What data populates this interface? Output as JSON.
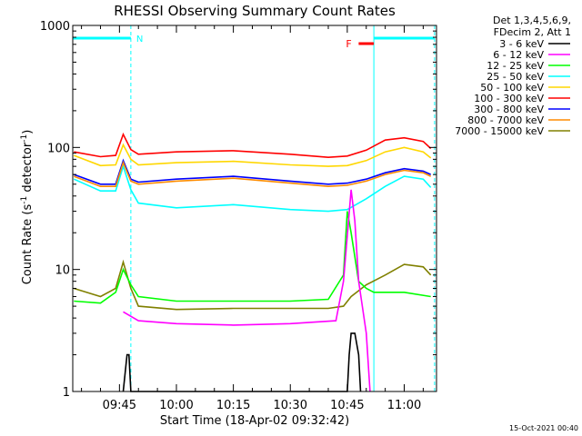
{
  "chart_data": {
    "type": "line",
    "title": "RHESSI Observing Summary Count Rates",
    "xlabel": "Start Time (18-Apr-02 09:32:42)",
    "ylabel": "Count Rate (s",
    "ylabel_exp1": "-1",
    "ylabel_mid": " detector",
    "ylabel_exp2": "-1",
    "ylabel_end": ")",
    "y_scale": "log",
    "ylim": [
      1,
      1000
    ],
    "xlim": [
      "09:32:42",
      "11:08:30"
    ],
    "x_ticks": [
      "09:45",
      "10:00",
      "10:15",
      "10:30",
      "10:45",
      "11:00"
    ],
    "y_ticks": [
      "1",
      "10",
      "100",
      "1000"
    ],
    "footer_date": "15-Oct-2021 00:40",
    "legend_header": [
      "Det 1,3,4,5,6,9,",
      "FDecim 2, Att 1"
    ],
    "legend_position": "right",
    "annotations": {
      "night_label": "N",
      "flare_label": "F",
      "night_intervals": [
        [
          "09:32:42",
          "09:48:00"
        ],
        [
          "10:52:00",
          "11:08:00"
        ]
      ],
      "flare_interval": [
        "10:48:00",
        "10:52:00"
      ]
    },
    "series": [
      {
        "name": "3 - 6 keV",
        "color": "#000000",
        "x": [
          "09:46",
          "09:47",
          "09:47.5",
          "09:48",
          "10:45",
          "10:45.5",
          "10:46",
          "10:47",
          "10:48",
          "10:48.5"
        ],
        "values": [
          1,
          2,
          2,
          1,
          1,
          2,
          3,
          3,
          2,
          1
        ]
      },
      {
        "name": "6 - 12 keV",
        "color": "#ff00ff",
        "x": [
          "09:46",
          "09:50",
          "10:00",
          "10:15",
          "10:30",
          "10:42",
          "10:44",
          "10:46",
          "10:47",
          "10:48",
          "10:50",
          "10:51"
        ],
        "values": [
          4.5,
          3.8,
          3.6,
          3.5,
          3.6,
          3.8,
          8,
          45,
          25,
          8,
          3,
          1
        ]
      },
      {
        "name": "12 - 25 keV",
        "color": "#00ff00",
        "x": [
          "09:33",
          "09:40",
          "09:44",
          "09:46",
          "09:48",
          "09:50",
          "10:00",
          "10:15",
          "10:30",
          "10:40",
          "10:44",
          "10:45",
          "10:46",
          "10:48",
          "10:50",
          "10:52",
          "11:00",
          "11:07"
        ],
        "values": [
          5.5,
          5.3,
          6.5,
          10,
          7.5,
          6,
          5.5,
          5.5,
          5.5,
          5.7,
          9,
          30,
          20,
          8,
          7,
          6.5,
          6.5,
          6
        ]
      },
      {
        "name": "25 - 50 keV",
        "color": "#00ffff",
        "x": [
          "09:33",
          "09:40",
          "09:44",
          "09:46",
          "09:48",
          "09:50",
          "10:00",
          "10:15",
          "10:30",
          "10:40",
          "10:45",
          "10:50",
          "10:55",
          "11:00",
          "11:05",
          "11:07"
        ],
        "values": [
          55,
          44,
          44,
          70,
          45,
          35,
          32,
          34,
          31,
          30,
          31,
          38,
          48,
          58,
          55,
          47
        ]
      },
      {
        "name": "50 - 100 keV",
        "color": "#ffd700",
        "x": [
          "09:33",
          "09:40",
          "09:44",
          "09:46",
          "09:48",
          "09:50",
          "10:00",
          "10:15",
          "10:30",
          "10:40",
          "10:45",
          "10:50",
          "10:55",
          "11:00",
          "11:05",
          "11:07"
        ],
        "values": [
          86,
          71,
          72,
          105,
          80,
          72,
          75,
          77,
          72,
          70,
          71,
          78,
          92,
          100,
          92,
          82
        ]
      },
      {
        "name": "100 - 300 keV",
        "color": "#ff0000",
        "x": [
          "09:33",
          "09:40",
          "09:44",
          "09:46",
          "09:48",
          "09:50",
          "10:00",
          "10:15",
          "10:30",
          "10:40",
          "10:45",
          "10:50",
          "10:55",
          "11:00",
          "11:05",
          "11:07"
        ],
        "values": [
          92,
          84,
          86,
          128,
          96,
          88,
          92,
          94,
          88,
          83,
          85,
          95,
          115,
          120,
          112,
          98
        ]
      },
      {
        "name": "300 - 800 keV",
        "color": "#0000ff",
        "x": [
          "09:33",
          "09:40",
          "09:44",
          "09:46",
          "09:48",
          "09:50",
          "10:00",
          "10:15",
          "10:30",
          "10:40",
          "10:45",
          "10:50",
          "10:55",
          "11:00",
          "11:05",
          "11:07"
        ],
        "values": [
          60,
          50,
          50,
          78,
          55,
          52,
          55,
          58,
          53,
          50,
          51,
          55,
          62,
          67,
          64,
          60
        ]
      },
      {
        "name": "800 - 7000 keV",
        "color": "#ff8c00",
        "x": [
          "09:33",
          "09:40",
          "09:44",
          "09:46",
          "09:48",
          "09:50",
          "10:00",
          "10:15",
          "10:30",
          "10:40",
          "10:45",
          "10:50",
          "10:55",
          "11:00",
          "11:05",
          "11:07"
        ],
        "values": [
          58,
          48,
          48,
          75,
          53,
          50,
          53,
          56,
          51,
          48,
          49,
          53,
          60,
          65,
          62,
          58
        ]
      },
      {
        "name": "7000 - 15000 keV",
        "color": "#808000",
        "x": [
          "09:33",
          "09:40",
          "09:44",
          "09:46",
          "09:48",
          "09:50",
          "10:00",
          "10:15",
          "10:30",
          "10:40",
          "10:44",
          "10:46",
          "10:50",
          "10:55",
          "11:00",
          "11:05",
          "11:07"
        ],
        "values": [
          7,
          6,
          7,
          11.5,
          7,
          5,
          4.7,
          4.8,
          4.8,
          4.8,
          5,
          6,
          7.5,
          9,
          11,
          10.5,
          9
        ]
      }
    ]
  }
}
